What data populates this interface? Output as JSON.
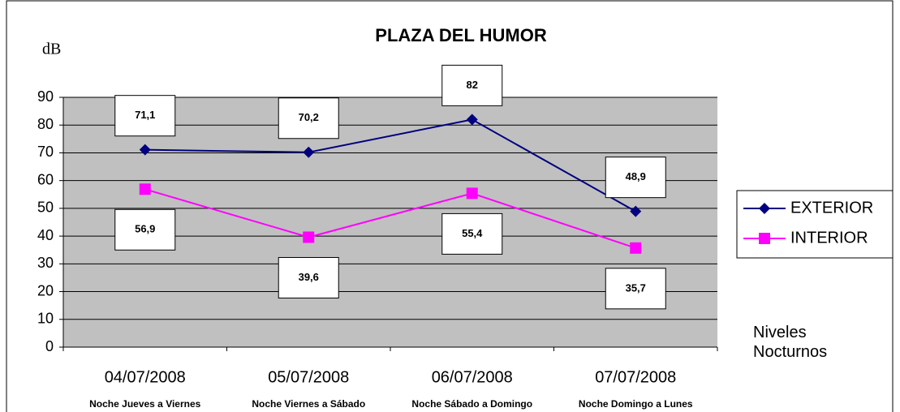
{
  "chart_data": {
    "type": "line",
    "title": "PLAZA DEL HUMOR",
    "y_axis_label": "dB",
    "x_axis_label": "Niveles Nocturnos",
    "categories": [
      "04/07/2008",
      "05/07/2008",
      "06/07/2008",
      "07/07/2008"
    ],
    "category_sublabels": [
      "Noche Jueves a Viernes",
      "Noche Viernes a Sábado",
      "Noche Sábado a Domingo",
      "Noche Domingo a Lunes"
    ],
    "series": [
      {
        "name": "EXTERIOR",
        "color": "#000080",
        "marker": "diamond",
        "values": [
          71.1,
          70.2,
          82,
          48.9
        ],
        "value_labels": [
          "71,1",
          "70,2",
          "82",
          "48,9"
        ]
      },
      {
        "name": "INTERIOR",
        "color": "#ff00ff",
        "marker": "square",
        "values": [
          56.9,
          39.6,
          55.4,
          35.7
        ],
        "value_labels": [
          "56,9",
          "39,6",
          "55,4",
          "35,7"
        ]
      }
    ],
    "ylim": [
      0,
      90
    ],
    "yticks": [
      0,
      10,
      20,
      30,
      40,
      50,
      60,
      70,
      80,
      90
    ],
    "grid": true,
    "legend": "right"
  }
}
